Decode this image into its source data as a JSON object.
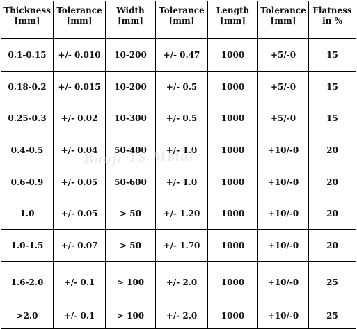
{
  "headers": [
    [
      "Thickness",
      "[mm]"
    ],
    [
      "Tolerance",
      "[mm]"
    ],
    [
      "Width",
      "[mm]"
    ],
    [
      "Tolerance",
      "[mm]"
    ],
    [
      "Length",
      "[mm]"
    ],
    [
      "Tolerance",
      "[mm]"
    ],
    [
      "Flatness",
      "in %"
    ]
  ],
  "rows": [
    [
      "0.1-0.15",
      "+/- 0.010",
      "10-200",
      "+/- 0.47",
      "1000",
      "+5/-0",
      "15"
    ],
    [
      "0.18-0.2",
      "+/- 0.015",
      "10-200",
      "+/- 0.5",
      "1000",
      "+5/-0",
      "15"
    ],
    [
      "0.25-0.3",
      "+/- 0.02",
      "10-300",
      "+/- 0.5",
      "1000",
      "+5/-0",
      "15"
    ],
    [
      "0.4-0.5",
      "+/- 0.04",
      "50-400",
      "+/- 1.0",
      "1000",
      "+10/-0",
      "20"
    ],
    [
      "0.6-0.9",
      "+/- 0.05",
      "50-600",
      "+/- 1.0",
      "1000",
      "+10/-0",
      "20"
    ],
    [
      "1.0",
      "+/- 0.05",
      "> 50",
      "+/- 1.20",
      "1000",
      "+10/-0",
      "20"
    ],
    [
      "1.0-1.5",
      "+/- 0.07",
      "> 50",
      "+/- 1.70",
      "1000",
      "+10/-0",
      "20"
    ],
    [
      "1.6-2.0",
      "+/- 0.1",
      "> 100",
      "+/- 2.0",
      "1000",
      "+10/-0",
      "25"
    ],
    [
      ">2.0",
      "+/- 0.1",
      "> 100",
      "+/- 2.0",
      "1000",
      "+10/-0",
      "25"
    ]
  ],
  "watermark": "Baoji TS Metal"
}
